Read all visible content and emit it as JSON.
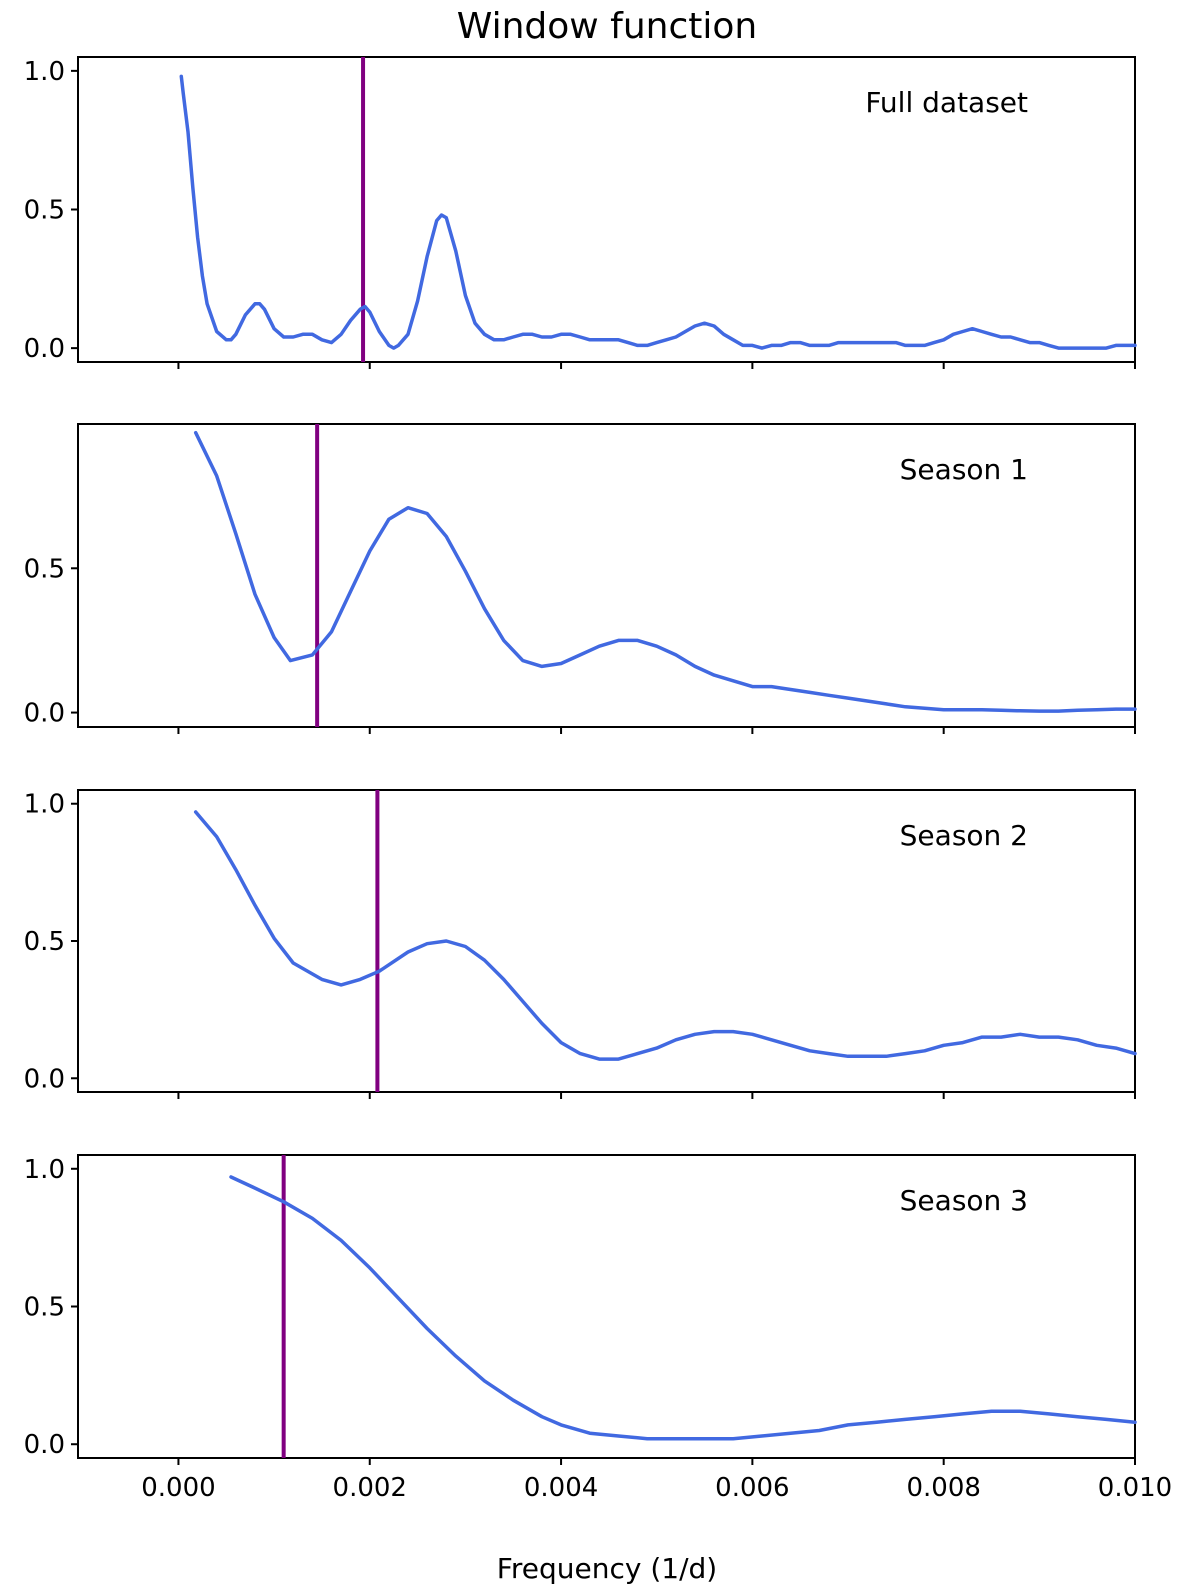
{
  "chart_data": {
    "type": "line",
    "title": "Window function",
    "xlabel": "Frequency (1/d)",
    "xlim": [
      -0.00105,
      0.01
    ],
    "xticks": [
      0.0,
      0.002,
      0.004,
      0.006,
      0.008,
      0.01
    ],
    "xtick_labels": [
      "0.000",
      "0.002",
      "0.004",
      "0.006",
      "0.008",
      "0.010"
    ],
    "colors": {
      "line": "#4169e1",
      "marker": "#800080"
    },
    "panels": [
      {
        "label": "Full dataset",
        "ylim": [
          -0.05,
          1.05
        ],
        "yticks": [
          0.0,
          0.5,
          1.0
        ],
        "ytick_labels": [
          "0.0",
          "0.5",
          "1.0"
        ],
        "marker_x": 0.00193,
        "x": [
          3e-05,
          5e-05,
          0.0001,
          0.00015,
          0.0002,
          0.00025,
          0.0003,
          0.0004,
          0.0005,
          0.00055,
          0.0006,
          0.0007,
          0.0008,
          0.00085,
          0.0009,
          0.001,
          0.0011,
          0.0012,
          0.0013,
          0.0014,
          0.0015,
          0.0016,
          0.0017,
          0.0018,
          0.0019,
          0.00195,
          0.002,
          0.0021,
          0.0022,
          0.00225,
          0.0023,
          0.0024,
          0.0025,
          0.0026,
          0.0027,
          0.00275,
          0.0028,
          0.0029,
          0.003,
          0.0031,
          0.0032,
          0.0033,
          0.0034,
          0.0035,
          0.0036,
          0.0037,
          0.0038,
          0.0039,
          0.004,
          0.0041,
          0.0042,
          0.0043,
          0.0044,
          0.0045,
          0.0046,
          0.0047,
          0.0048,
          0.0049,
          0.005,
          0.0051,
          0.0052,
          0.0053,
          0.0054,
          0.0055,
          0.0056,
          0.0057,
          0.0058,
          0.0059,
          0.006,
          0.0061,
          0.0062,
          0.0063,
          0.0064,
          0.0065,
          0.0066,
          0.0067,
          0.0068,
          0.0069,
          0.007,
          0.0071,
          0.0072,
          0.0073,
          0.0074,
          0.0075,
          0.0076,
          0.0077,
          0.0078,
          0.0079,
          0.008,
          0.0081,
          0.0082,
          0.0083,
          0.0084,
          0.0085,
          0.0086,
          0.0087,
          0.0088,
          0.0089,
          0.009,
          0.0091,
          0.0092,
          0.0093,
          0.0094,
          0.0095,
          0.0096,
          0.0097,
          0.0098,
          0.0099,
          0.01
        ],
        "y": [
          0.98,
          0.92,
          0.78,
          0.58,
          0.4,
          0.26,
          0.16,
          0.06,
          0.03,
          0.03,
          0.05,
          0.12,
          0.16,
          0.16,
          0.14,
          0.07,
          0.04,
          0.04,
          0.05,
          0.05,
          0.03,
          0.02,
          0.05,
          0.1,
          0.14,
          0.15,
          0.13,
          0.06,
          0.01,
          0.0,
          0.01,
          0.05,
          0.17,
          0.33,
          0.46,
          0.48,
          0.47,
          0.35,
          0.19,
          0.09,
          0.05,
          0.03,
          0.03,
          0.04,
          0.05,
          0.05,
          0.04,
          0.04,
          0.05,
          0.05,
          0.04,
          0.03,
          0.03,
          0.03,
          0.03,
          0.02,
          0.01,
          0.01,
          0.02,
          0.03,
          0.04,
          0.06,
          0.08,
          0.09,
          0.08,
          0.05,
          0.03,
          0.01,
          0.01,
          0.0,
          0.01,
          0.01,
          0.02,
          0.02,
          0.01,
          0.01,
          0.01,
          0.02,
          0.02,
          0.02,
          0.02,
          0.02,
          0.02,
          0.02,
          0.01,
          0.01,
          0.01,
          0.02,
          0.03,
          0.05,
          0.06,
          0.07,
          0.06,
          0.05,
          0.04,
          0.04,
          0.03,
          0.02,
          0.02,
          0.01,
          0.0,
          0.0,
          0.0,
          0.0,
          0.0,
          0.0,
          0.01,
          0.01,
          0.01
        ]
      },
      {
        "label": "Season 1",
        "ylim": [
          -0.05,
          1.0
        ],
        "yticks": [
          0.0,
          0.5
        ],
        "ytick_labels": [
          "0.0",
          "0.5"
        ],
        "marker_x": 0.00145,
        "x": [
          0.00018,
          0.0004,
          0.0006,
          0.0008,
          0.001,
          0.00117,
          0.0014,
          0.0016,
          0.0018,
          0.002,
          0.0022,
          0.0024,
          0.0026,
          0.0028,
          0.003,
          0.0032,
          0.0034,
          0.0036,
          0.0038,
          0.004,
          0.0042,
          0.0044,
          0.0046,
          0.0048,
          0.005,
          0.0052,
          0.0054,
          0.0056,
          0.0058,
          0.006,
          0.0062,
          0.0064,
          0.0066,
          0.0068,
          0.007,
          0.0072,
          0.0074,
          0.0076,
          0.0078,
          0.008,
          0.0082,
          0.0084,
          0.0086,
          0.0088,
          0.009,
          0.0092,
          0.0094,
          0.0096,
          0.0098,
          0.01
        ],
        "y": [
          0.97,
          0.82,
          0.62,
          0.41,
          0.26,
          0.18,
          0.2,
          0.28,
          0.42,
          0.56,
          0.67,
          0.71,
          0.69,
          0.61,
          0.49,
          0.36,
          0.25,
          0.18,
          0.16,
          0.17,
          0.2,
          0.23,
          0.25,
          0.25,
          0.23,
          0.2,
          0.16,
          0.13,
          0.11,
          0.09,
          0.09,
          0.08,
          0.07,
          0.06,
          0.05,
          0.04,
          0.03,
          0.02,
          0.015,
          0.01,
          0.01,
          0.01,
          0.008,
          0.006,
          0.005,
          0.005,
          0.008,
          0.01,
          0.012,
          0.012
        ]
      },
      {
        "label": "Season 2",
        "ylim": [
          -0.05,
          1.05
        ],
        "yticks": [
          0.0,
          0.5,
          1.0
        ],
        "ytick_labels": [
          "0.0",
          "0.5",
          "1.0"
        ],
        "marker_x": 0.00208,
        "x": [
          0.00018,
          0.0004,
          0.0006,
          0.0008,
          0.001,
          0.0012,
          0.0015,
          0.0017,
          0.0019,
          0.0021,
          0.0024,
          0.0026,
          0.0028,
          0.003,
          0.0032,
          0.0034,
          0.0036,
          0.0038,
          0.004,
          0.0042,
          0.0044,
          0.0046,
          0.0048,
          0.005,
          0.0052,
          0.0054,
          0.0056,
          0.0058,
          0.006,
          0.0062,
          0.0064,
          0.0066,
          0.0068,
          0.007,
          0.0072,
          0.0074,
          0.0076,
          0.0078,
          0.008,
          0.0082,
          0.0084,
          0.0086,
          0.0088,
          0.009,
          0.0092,
          0.0094,
          0.0096,
          0.0098,
          0.01
        ],
        "y": [
          0.97,
          0.88,
          0.76,
          0.63,
          0.51,
          0.42,
          0.36,
          0.34,
          0.36,
          0.39,
          0.46,
          0.49,
          0.5,
          0.48,
          0.43,
          0.36,
          0.28,
          0.2,
          0.13,
          0.09,
          0.07,
          0.07,
          0.09,
          0.11,
          0.14,
          0.16,
          0.17,
          0.17,
          0.16,
          0.14,
          0.12,
          0.1,
          0.09,
          0.08,
          0.08,
          0.08,
          0.09,
          0.1,
          0.12,
          0.13,
          0.15,
          0.15,
          0.16,
          0.15,
          0.15,
          0.14,
          0.12,
          0.11,
          0.09
        ]
      },
      {
        "label": "Season 3",
        "ylim": [
          -0.05,
          1.05
        ],
        "yticks": [
          0.0,
          0.5,
          1.0
        ],
        "ytick_labels": [
          "0.0",
          "0.5",
          "1.0"
        ],
        "marker_x": 0.0011,
        "x": [
          0.00055,
          0.0008,
          0.0011,
          0.0014,
          0.0017,
          0.002,
          0.0023,
          0.0026,
          0.0029,
          0.0032,
          0.0035,
          0.0038,
          0.004,
          0.0043,
          0.0046,
          0.0049,
          0.0052,
          0.0055,
          0.0058,
          0.0061,
          0.0064,
          0.0067,
          0.007,
          0.0073,
          0.0076,
          0.0079,
          0.0082,
          0.0085,
          0.0088,
          0.0091,
          0.0094,
          0.0097,
          0.01
        ],
        "y": [
          0.97,
          0.93,
          0.88,
          0.82,
          0.74,
          0.64,
          0.53,
          0.42,
          0.32,
          0.23,
          0.16,
          0.1,
          0.07,
          0.04,
          0.03,
          0.02,
          0.02,
          0.02,
          0.02,
          0.03,
          0.04,
          0.05,
          0.07,
          0.08,
          0.09,
          0.1,
          0.11,
          0.12,
          0.12,
          0.11,
          0.1,
          0.09,
          0.08
        ]
      }
    ]
  }
}
